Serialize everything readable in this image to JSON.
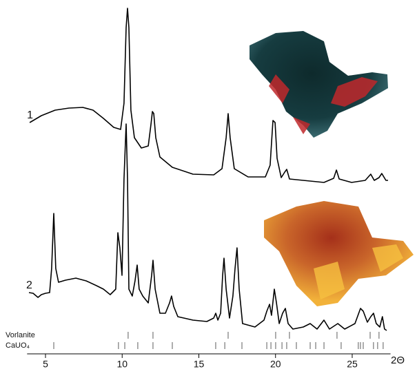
{
  "chart_data": {
    "type": "line",
    "xlabel": "2Θ",
    "xlim": [
      3.8,
      27.5
    ],
    "ylim": [
      0,
      103
    ],
    "xticks": [
      5,
      10,
      15,
      20,
      25
    ],
    "series": [
      {
        "name": "1",
        "color": "#000000",
        "x": [
          3.97,
          4.73,
          5.63,
          6.53,
          7.43,
          8.1,
          8.78,
          9.45,
          9.9,
          10.12,
          10.26,
          10.35,
          10.44,
          10.57,
          10.8,
          11.25,
          11.7,
          11.88,
          11.97,
          12.06,
          12.19,
          12.46,
          13.27,
          14.62,
          15.97,
          16.51,
          16.78,
          16.91,
          17.04,
          17.31,
          18.21,
          19.34,
          19.65,
          19.83,
          19.97,
          20.1,
          20.37,
          20.6,
          20.73,
          20.91,
          23.16,
          23.79,
          23.97,
          24.15,
          24.96,
          25.85,
          26.21,
          26.44,
          26.75,
          26.93,
          27.2,
          27.34
        ],
        "values": [
          67.4,
          69.4,
          71,
          71.6,
          71.8,
          71,
          68.6,
          66,
          65.4,
          73,
          95,
          100.6,
          95,
          71,
          63,
          60,
          60.6,
          67,
          70.6,
          70,
          63,
          57.4,
          54.4,
          52.4,
          52.2,
          54,
          63,
          70,
          63,
          54,
          51.6,
          51.6,
          55,
          68,
          67.4,
          57,
          51.4,
          53,
          53.8,
          51,
          50,
          51.2,
          53.6,
          51,
          50,
          50.6,
          52.4,
          50.6,
          51.4,
          52.6,
          50.6,
          50.6
        ]
      },
      {
        "name": "2",
        "color": "#000000",
        "x": [
          3.92,
          4.19,
          4.51,
          4.73,
          5.0,
          5.27,
          5.4,
          5.54,
          5.67,
          5.85,
          6.3,
          6.98,
          7.65,
          8.33,
          8.78,
          9.22,
          9.58,
          9.72,
          9.85,
          9.99,
          10.12,
          10.26,
          10.35,
          10.44,
          10.66,
          10.84,
          10.98,
          11.11,
          11.34,
          11.7,
          11.92,
          12.01,
          12.15,
          12.46,
          12.82,
          13.09,
          13.22,
          13.36,
          13.63,
          14.62,
          15.52,
          15.97,
          16.1,
          16.24,
          16.42,
          16.55,
          16.64,
          16.78,
          17.0,
          17.22,
          17.36,
          17.49,
          17.63,
          17.85,
          18.66,
          19.25,
          19.43,
          19.61,
          19.74,
          19.92,
          20.06,
          20.24,
          20.46,
          20.64,
          20.82,
          21.13,
          21.81,
          22.26,
          22.71,
          23.16,
          23.52,
          24.06,
          24.51,
          25.18,
          25.54,
          25.72,
          25.99,
          26.21,
          26.39,
          26.57,
          26.8,
          26.97,
          27.11,
          27.25
        ],
        "values": [
          18,
          17.8,
          16.6,
          17.4,
          17.8,
          18,
          25,
          41,
          25,
          21,
          21.6,
          22.2,
          21.4,
          20,
          19,
          17.4,
          19,
          35.4,
          31,
          23,
          51,
          67,
          51,
          19,
          17,
          21.4,
          26,
          19,
          17,
          15,
          23,
          27.4,
          19,
          12,
          12,
          15,
          17,
          14,
          11,
          10,
          9.6,
          10.6,
          12,
          10,
          12,
          23,
          28,
          19,
          10.6,
          17,
          25,
          31,
          19,
          9,
          8,
          10,
          12.6,
          14.6,
          11.4,
          19,
          15,
          9,
          12,
          13.4,
          9,
          7.4,
          8,
          9,
          7.4,
          10,
          7.4,
          9,
          7.4,
          9,
          13.4,
          12.6,
          9.4,
          11,
          12,
          9,
          8,
          11,
          7.4,
          7
        ]
      }
    ],
    "reference_lines": [
      {
        "name": "Vorlanite",
        "positions": [
          10.39,
          12.01,
          16.91,
          20.01,
          20.91,
          24.01,
          26.17,
          26.75
        ]
      },
      {
        "name": "CaUO₄",
        "positions": [
          5.54,
          9.76,
          10.17,
          11.02,
          12.01,
          13.27,
          16.1,
          16.69,
          17.81,
          19.43,
          19.7,
          20.01,
          20.42,
          20.73,
          21.36,
          22.26,
          22.62,
          23.16,
          24.28,
          25.4,
          25.54,
          25.72,
          26.39,
          26.66,
          27.02
        ]
      }
    ]
  }
}
